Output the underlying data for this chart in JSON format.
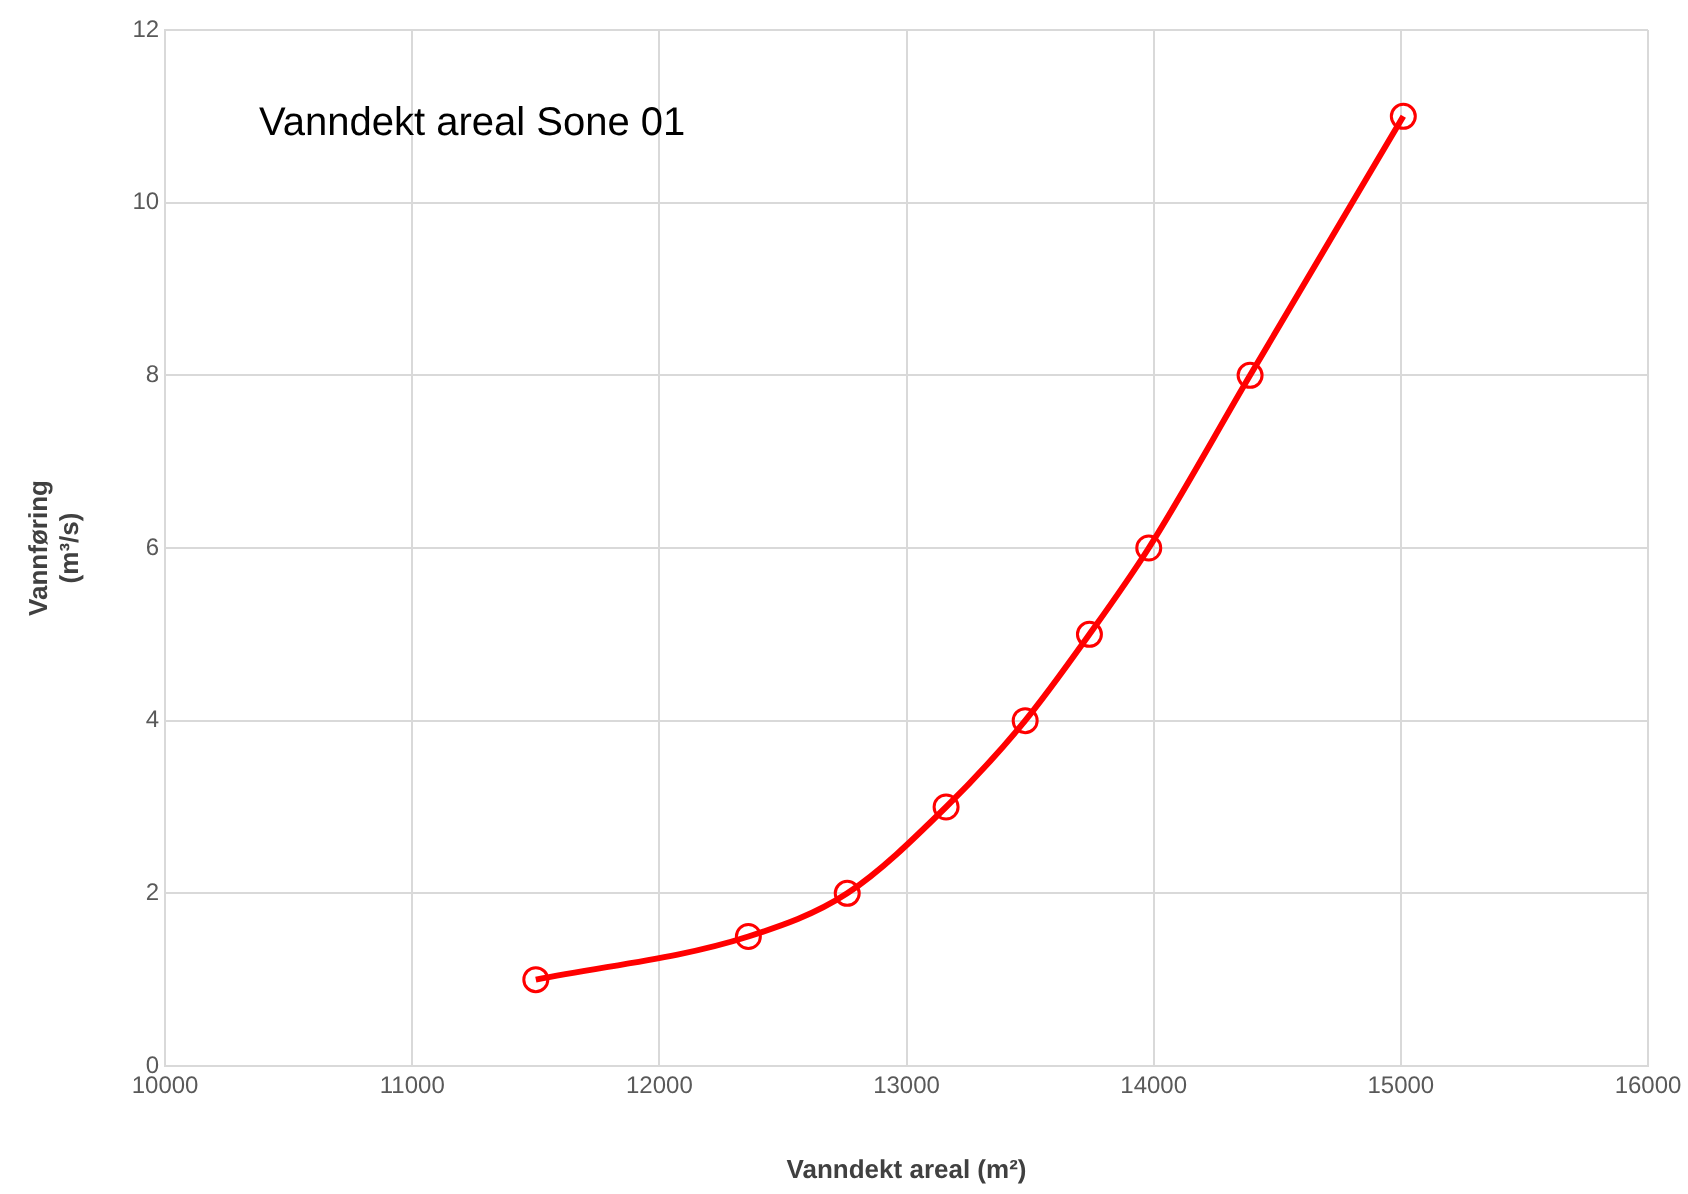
{
  "chart_data": {
    "type": "line",
    "title": "Vanndekt areal Sone 01",
    "xlabel": "Vanndekt areal (m²)",
    "ylabel": "Vannføring (m³/s)",
    "x": [
      11500,
      12360,
      12760,
      13160,
      13480,
      13740,
      13980,
      14390,
      15010
    ],
    "series": [
      {
        "color": "#ff0000",
        "values": [
          1,
          1.5,
          2,
          3,
          4,
          5,
          6,
          8,
          11
        ]
      }
    ],
    "xlim": [
      10000,
      16000
    ],
    "xticks": [
      10000,
      11000,
      12000,
      13000,
      14000,
      15000,
      16000
    ],
    "ylim": [
      0,
      12
    ],
    "yticks": [
      0,
      2,
      4,
      6,
      8,
      10,
      12
    ],
    "grid": true,
    "marker": "circle",
    "line_style": "solid",
    "legend": false
  }
}
